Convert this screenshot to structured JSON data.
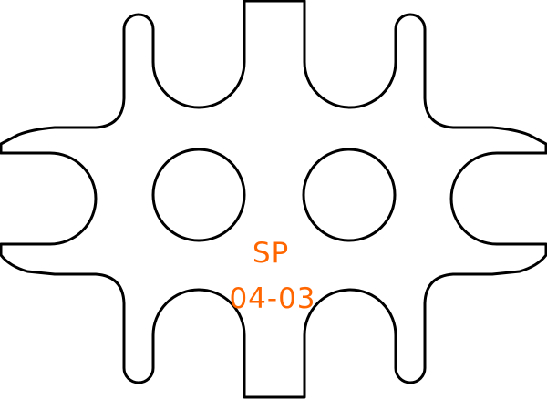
{
  "part": {
    "label_line1": "SP",
    "label_line2": "04-03"
  },
  "colors": {
    "outline": "#000000",
    "label": "#ff6600",
    "background": "#ffffff"
  },
  "features": {
    "hole_count": 2,
    "top_slot_count": 2,
    "bottom_slot_count": 2,
    "side_slot_count": 2
  }
}
